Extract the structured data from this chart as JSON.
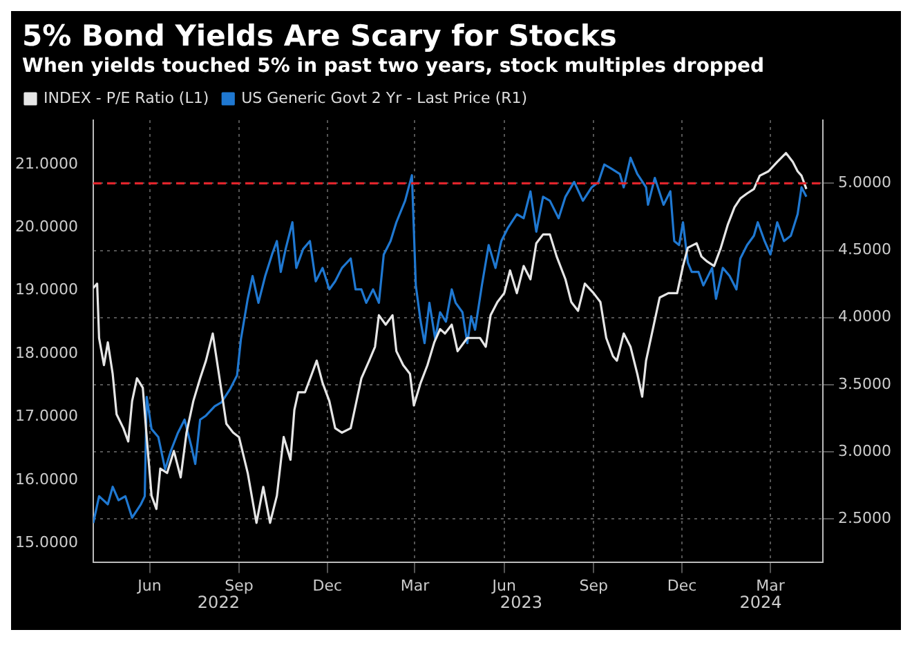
{
  "chart_data": {
    "type": "line",
    "title": "5% Bond Yields Are Scary for Stocks",
    "subtitle": "When yields touched 5% in past two years, stock multiples dropped",
    "xlim": [
      "2022-04-18",
      "2024-05-08"
    ],
    "xticks": [
      {
        "value": "2022-06-15",
        "label": "Jun"
      },
      {
        "value": "2022-09-15",
        "label": "Sep"
      },
      {
        "value": "2022-12-15",
        "label": "Dec"
      },
      {
        "value": "2023-03-15",
        "label": "Mar"
      },
      {
        "value": "2023-06-15",
        "label": "Jun"
      },
      {
        "value": "2023-09-15",
        "label": "Sep"
      },
      {
        "value": "2023-12-15",
        "label": "Dec"
      },
      {
        "value": "2024-03-15",
        "label": "Mar"
      }
    ],
    "ylim": [
      14.7,
      21.7
    ],
    "yticks": [
      {
        "value": 15,
        "label": "15.0000"
      },
      {
        "value": 16,
        "label": "16.0000"
      },
      {
        "value": 17,
        "label": "17.0000"
      },
      {
        "value": 18,
        "label": "18.0000"
      },
      {
        "value": 19,
        "label": "19.0000"
      },
      {
        "value": 20,
        "label": "20.0000"
      },
      {
        "value": 21,
        "label": "21.0000"
      }
    ],
    "y2lim": [
      2.18,
      5.47
    ],
    "y2ticks": [
      {
        "value": 2.5,
        "label": "2.5000"
      },
      {
        "value": 3,
        "label": "3.0000"
      },
      {
        "value": 3.5,
        "label": "3.5000"
      },
      {
        "value": 4,
        "label": "4.0000"
      },
      {
        "value": 4.5,
        "label": "4.5000"
      },
      {
        "value": 5,
        "label": "5.0000"
      }
    ],
    "grid": true,
    "legend": "top left",
    "marker": "none",
    "line_style": "solid",
    "ref_lines": [
      {
        "axis": "y2",
        "value": 5,
        "color": "#e0242b",
        "line_style": "dashed"
      }
    ],
    "annotations": [
      "2022",
      "2023",
      "2024"
    ],
    "series": [
      {
        "name": "INDEX - P/E Ratio (L1)",
        "color": "#e6e6e6",
        "axis": "y",
        "x": [
          "2022-04-18",
          "2022-04-22",
          "2022-04-24",
          "2022-04-29",
          "2022-05-03",
          "2022-05-08",
          "2022-05-12",
          "2022-05-19",
          "2022-05-24",
          "2022-05-28",
          "2022-06-02",
          "2022-06-08",
          "2022-06-12",
          "2022-06-17",
          "2022-06-22",
          "2022-06-26",
          "2022-07-03",
          "2022-07-10",
          "2022-07-17",
          "2022-07-23",
          "2022-07-30",
          "2022-08-06",
          "2022-08-12",
          "2022-08-19",
          "2022-08-26",
          "2022-09-02",
          "2022-09-09",
          "2022-09-15",
          "2022-09-24",
          "2022-10-03",
          "2022-10-10",
          "2022-10-17",
          "2022-10-24",
          "2022-10-31",
          "2022-11-07",
          "2022-11-11",
          "2022-11-15",
          "2022-11-22",
          "2022-11-29",
          "2022-12-04",
          "2022-12-10",
          "2022-12-17",
          "2022-12-23",
          "2022-12-30",
          "2023-01-08",
          "2023-01-13",
          "2023-01-19",
          "2023-01-27",
          "2023-02-02",
          "2023-02-06",
          "2023-02-13",
          "2023-02-20",
          "2023-02-24",
          "2023-03-03",
          "2023-03-10",
          "2023-03-14",
          "2023-03-21",
          "2023-03-28",
          "2023-04-04",
          "2023-04-10",
          "2023-04-15",
          "2023-04-22",
          "2023-04-28",
          "2023-05-08",
          "2023-05-14",
          "2023-05-21",
          "2023-05-27",
          "2023-06-01",
          "2023-06-08",
          "2023-06-15",
          "2023-06-21",
          "2023-06-28",
          "2023-07-05",
          "2023-07-12",
          "2023-07-18",
          "2023-07-25",
          "2023-08-01",
          "2023-08-08",
          "2023-08-17",
          "2023-08-23",
          "2023-08-30",
          "2023-09-06",
          "2023-09-15",
          "2023-09-22",
          "2023-09-28",
          "2023-10-05",
          "2023-10-09",
          "2023-10-16",
          "2023-10-23",
          "2023-10-30",
          "2023-11-04",
          "2023-11-08",
          "2023-11-15",
          "2023-11-22",
          "2023-12-01",
          "2023-12-10",
          "2023-12-16",
          "2023-12-21",
          "2023-12-30",
          "2024-01-04",
          "2024-01-10",
          "2024-01-17",
          "2024-01-24",
          "2024-01-31",
          "2024-02-07",
          "2024-02-13",
          "2024-02-20",
          "2024-02-27",
          "2024-03-04",
          "2024-03-13",
          "2024-03-22",
          "2024-03-31",
          "2024-04-07",
          "2024-04-12",
          "2024-04-16",
          "2024-04-21"
        ],
        "values": [
          19.04,
          19.11,
          18.25,
          17.82,
          18.18,
          17.68,
          17.04,
          16.82,
          16.61,
          17.25,
          17.61,
          17.46,
          16.68,
          15.75,
          15.54,
          16.18,
          16.11,
          16.46,
          16.04,
          16.75,
          17.25,
          17.61,
          17.89,
          18.32,
          17.61,
          16.89,
          16.75,
          16.68,
          16.11,
          15.32,
          15.89,
          15.32,
          15.75,
          16.68,
          16.32,
          17.11,
          17.39,
          17.39,
          17.68,
          17.89,
          17.54,
          17.25,
          16.82,
          16.75,
          16.82,
          17.18,
          17.61,
          17.89,
          18.11,
          18.61,
          18.46,
          18.61,
          18.04,
          17.82,
          17.68,
          17.18,
          17.54,
          17.82,
          18.18,
          18.39,
          18.32,
          18.46,
          18.04,
          18.25,
          18.25,
          18.25,
          18.11,
          18.61,
          18.82,
          18.96,
          19.32,
          18.96,
          19.39,
          19.18,
          19.75,
          19.89,
          19.89,
          19.54,
          19.18,
          18.82,
          18.68,
          19.11,
          18.96,
          18.82,
          18.25,
          17.96,
          17.89,
          18.32,
          18.11,
          17.68,
          17.32,
          17.89,
          18.39,
          18.89,
          18.96,
          18.96,
          19.39,
          19.68,
          19.75,
          19.54,
          19.46,
          19.39,
          19.68,
          20.04,
          20.32,
          20.46,
          20.54,
          20.61,
          20.82,
          20.89,
          21.04,
          21.18,
          21.04,
          20.89,
          20.82,
          20.61
        ]
      },
      {
        "name": "US Generic Govt 2 Yr - Last Price (R1)",
        "color": "#1f78d1",
        "axis": "y2",
        "x": [
          "2022-04-18",
          "2022-04-24",
          "2022-05-03",
          "2022-05-08",
          "2022-05-14",
          "2022-05-21",
          "2022-05-28",
          "2022-06-06",
          "2022-06-10",
          "2022-06-12",
          "2022-06-17",
          "2022-06-24",
          "2022-07-01",
          "2022-07-07",
          "2022-07-14",
          "2022-07-21",
          "2022-07-28",
          "2022-08-01",
          "2022-08-06",
          "2022-08-12",
          "2022-08-21",
          "2022-08-28",
          "2022-09-06",
          "2022-09-13",
          "2022-09-17",
          "2022-09-24",
          "2022-09-29",
          "2022-10-05",
          "2022-10-12",
          "2022-10-19",
          "2022-10-24",
          "2022-10-28",
          "2022-11-02",
          "2022-11-09",
          "2022-11-13",
          "2022-11-20",
          "2022-11-27",
          "2022-12-03",
          "2022-12-10",
          "2022-12-17",
          "2022-12-23",
          "2022-12-30",
          "2023-01-08",
          "2023-01-13",
          "2023-01-19",
          "2023-01-24",
          "2023-01-31",
          "2023-02-06",
          "2023-02-11",
          "2023-02-18",
          "2023-02-24",
          "2023-03-05",
          "2023-03-12",
          "2023-03-16",
          "2023-03-21",
          "2023-03-25",
          "2023-03-30",
          "2023-04-05",
          "2023-04-10",
          "2023-04-16",
          "2023-04-22",
          "2023-04-26",
          "2023-05-03",
          "2023-05-08",
          "2023-05-12",
          "2023-05-16",
          "2023-05-23",
          "2023-05-30",
          "2023-06-06",
          "2023-06-12",
          "2023-06-19",
          "2023-06-28",
          "2023-07-05",
          "2023-07-12",
          "2023-07-18",
          "2023-07-25",
          "2023-08-01",
          "2023-08-10",
          "2023-08-17",
          "2023-08-26",
          "2023-09-04",
          "2023-09-13",
          "2023-09-20",
          "2023-09-26",
          "2023-10-03",
          "2023-10-12",
          "2023-10-16",
          "2023-10-23",
          "2023-10-30",
          "2023-11-08",
          "2023-11-10",
          "2023-11-17",
          "2023-11-26",
          "2023-12-03",
          "2023-12-07",
          "2023-12-12",
          "2023-12-16",
          "2023-12-21",
          "2023-12-25",
          "2024-01-01",
          "2024-01-06",
          "2024-01-15",
          "2024-01-19",
          "2024-01-26",
          "2024-02-02",
          "2024-02-09",
          "2024-02-13",
          "2024-02-20",
          "2024-02-27",
          "2024-03-02",
          "2024-03-09",
          "2024-03-15",
          "2024-03-22",
          "2024-03-29",
          "2024-04-05",
          "2024-04-12",
          "2024-04-16",
          "2024-04-21"
        ],
        "values": [
          2.47,
          2.67,
          2.61,
          2.74,
          2.64,
          2.67,
          2.51,
          2.61,
          2.67,
          3.41,
          3.17,
          3.11,
          2.87,
          3.01,
          3.14,
          3.24,
          3.04,
          2.91,
          3.24,
          3.27,
          3.34,
          3.37,
          3.47,
          3.57,
          3.84,
          4.14,
          4.31,
          4.11,
          4.31,
          4.47,
          4.57,
          4.34,
          4.51,
          4.71,
          4.37,
          4.51,
          4.57,
          4.27,
          4.37,
          4.21,
          4.27,
          4.37,
          4.44,
          4.21,
          4.21,
          4.11,
          4.21,
          4.11,
          4.47,
          4.57,
          4.71,
          4.87,
          5.06,
          4.24,
          3.97,
          3.81,
          4.11,
          3.84,
          4.04,
          3.97,
          4.21,
          4.11,
          4.04,
          3.81,
          4.01,
          3.91,
          4.24,
          4.54,
          4.37,
          4.57,
          4.67,
          4.77,
          4.74,
          4.94,
          4.64,
          4.9,
          4.87,
          4.74,
          4.9,
          5.01,
          4.87,
          4.97,
          5.01,
          5.14,
          5.11,
          5.07,
          4.97,
          5.19,
          5.07,
          4.97,
          4.84,
          5.04,
          4.84,
          4.94,
          4.57,
          4.54,
          4.71,
          4.41,
          4.34,
          4.34,
          4.24,
          4.37,
          4.14,
          4.37,
          4.31,
          4.21,
          4.44,
          4.54,
          4.61,
          4.71,
          4.57,
          4.47,
          4.71,
          4.57,
          4.61,
          4.77,
          4.97,
          4.9
        ]
      }
    ]
  }
}
